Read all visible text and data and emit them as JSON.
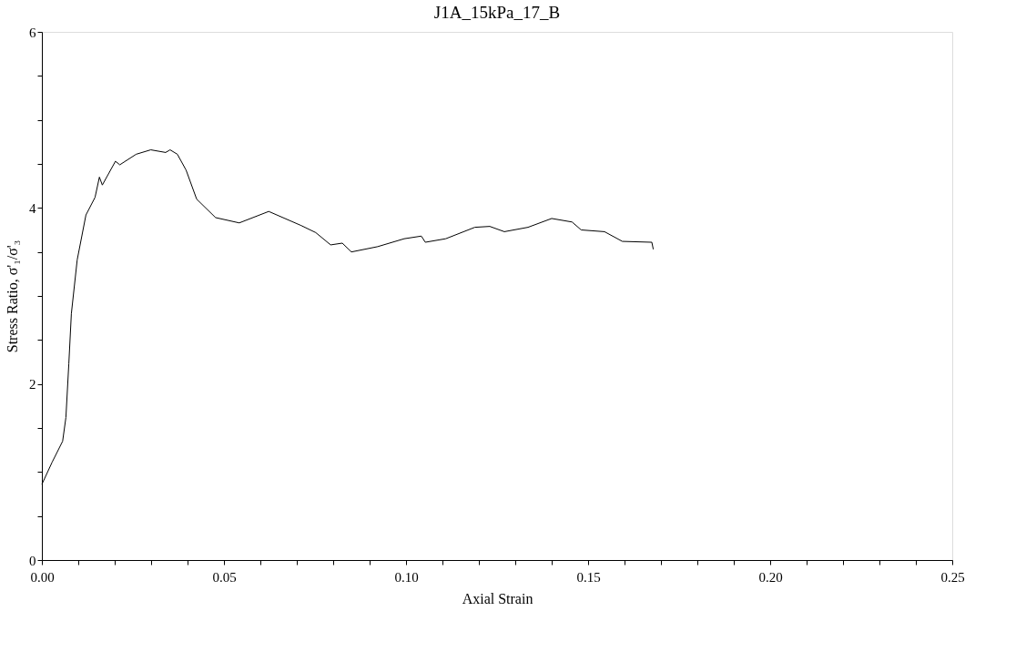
{
  "chart_data": {
    "type": "line",
    "title": "J1A_15kPa_17_B",
    "xlabel": "Axial Strain",
    "ylabel": "Stress Ratio, σ'₁/σ'₃",
    "x": [
      0,
      0.0028,
      0.0057,
      0.0066,
      0.0074,
      0.0081,
      0.0097,
      0.0121,
      0.0146,
      0.0158,
      0.0166,
      0.0202,
      0.0214,
      0.0259,
      0.0299,
      0.034,
      0.0352,
      0.0372,
      0.0396,
      0.0425,
      0.0477,
      0.0542,
      0.0623,
      0.0712,
      0.0752,
      0.0793,
      0.0825,
      0.085,
      0.0922,
      0.0995,
      0.1042,
      0.1053,
      0.1109,
      0.1189,
      0.123,
      0.127,
      0.1335,
      0.14,
      0.1456,
      0.1481,
      0.1545,
      0.1594,
      0.1675,
      0.1679
    ],
    "series": [
      {
        "color": "#000000",
        "values": [
          0.86,
          1.11,
          1.35,
          1.62,
          2.23,
          2.8,
          3.41,
          3.92,
          4.12,
          4.35,
          4.26,
          4.53,
          4.49,
          4.61,
          4.66,
          4.63,
          4.66,
          4.61,
          4.43,
          4.1,
          3.89,
          3.83,
          3.96,
          3.8,
          3.72,
          3.58,
          3.6,
          3.5,
          3.56,
          3.65,
          3.68,
          3.61,
          3.65,
          3.78,
          3.79,
          3.73,
          3.78,
          3.88,
          3.84,
          3.75,
          3.73,
          3.62,
          3.61,
          3.53
        ]
      }
    ],
    "xlim": [
      0,
      0.25
    ],
    "xticks": [
      {
        "value": 0,
        "label": "0.00"
      },
      {
        "value": 0.01,
        "label": null
      },
      {
        "value": 0.02,
        "label": null
      },
      {
        "value": 0.03,
        "label": null
      },
      {
        "value": 0.04,
        "label": null
      },
      {
        "value": 0.05,
        "label": "0.05"
      },
      {
        "value": 0.06,
        "label": null
      },
      {
        "value": 0.07,
        "label": null
      },
      {
        "value": 0.08,
        "label": null
      },
      {
        "value": 0.09,
        "label": null
      },
      {
        "value": 0.1,
        "label": "0.10"
      },
      {
        "value": 0.11,
        "label": null
      },
      {
        "value": 0.12,
        "label": null
      },
      {
        "value": 0.13,
        "label": null
      },
      {
        "value": 0.14,
        "label": null
      },
      {
        "value": 0.15,
        "label": "0.15"
      },
      {
        "value": 0.16,
        "label": null
      },
      {
        "value": 0.17,
        "label": null
      },
      {
        "value": 0.18,
        "label": null
      },
      {
        "value": 0.19,
        "label": null
      },
      {
        "value": 0.2,
        "label": "0.20"
      },
      {
        "value": 0.21,
        "label": null
      },
      {
        "value": 0.22,
        "label": null
      },
      {
        "value": 0.23,
        "label": null
      },
      {
        "value": 0.24,
        "label": null
      },
      {
        "value": 0.25,
        "label": "0.25"
      }
    ],
    "ylim": [
      0,
      6
    ],
    "yticks": [
      0,
      {
        "value": 0.5,
        "label": null
      },
      {
        "value": 1,
        "label": null
      },
      {
        "value": 1.5,
        "label": null
      },
      2,
      {
        "value": 2.5,
        "label": null
      },
      {
        "value": 3,
        "label": null
      },
      {
        "value": 3.5,
        "label": null
      },
      4,
      {
        "value": 4.5,
        "label": null
      },
      {
        "value": 5,
        "label": null
      },
      {
        "value": 5.5,
        "label": null
      },
      6
    ],
    "grid": false,
    "marker": "none",
    "line_style": "solid"
  }
}
